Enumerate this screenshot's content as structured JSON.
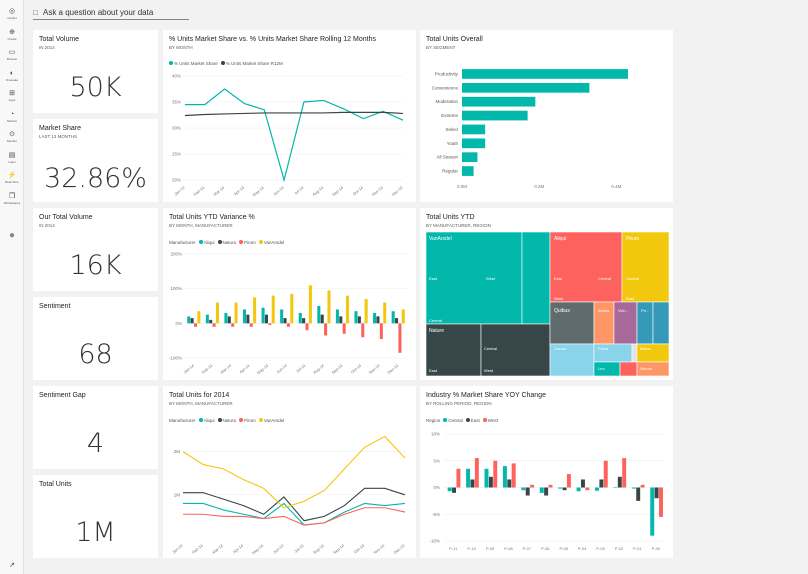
{
  "colors": {
    "teal": "#01b8aa",
    "dark": "#374649",
    "red": "#fd625e",
    "yellow": "#f2c80f",
    "gray": "#5f6b6d",
    "lightblue": "#8ad4eb",
    "orange": "#fe9666",
    "purple": "#a66999",
    "blue": "#3599b8",
    "lime": "#dfbfbf"
  },
  "nav": [
    {
      "label": "Copilot",
      "icon": "copilot-icon"
    },
    {
      "label": "Create",
      "icon": "plus-icon"
    },
    {
      "label": "Browse",
      "icon": "folder-icon"
    },
    {
      "label": "OneLake",
      "icon": "onelake-icon"
    },
    {
      "label": "Apps",
      "icon": "apps-icon"
    },
    {
      "label": "Metrics",
      "icon": "metrics-icon"
    },
    {
      "label": "Monitor",
      "icon": "monitor-icon"
    },
    {
      "label": "Learn",
      "icon": "book-icon"
    },
    {
      "label": "Real-Time",
      "icon": "realtime-icon"
    },
    {
      "label": "Workspaces",
      "icon": "workspaces-icon"
    }
  ],
  "qa": {
    "placeholder": "Ask a question about your data"
  },
  "cards": {
    "total_volume": {
      "title": "Total Volume",
      "subtitle": "IN 2014",
      "value": "50K"
    },
    "market_share": {
      "title": "Market Share",
      "subtitle": "LAST 13 MONTHS",
      "value": "32.86%"
    },
    "our_total_volume": {
      "title": "Our Total Volume",
      "subtitle": "IN 2014",
      "value": "16K"
    },
    "sentiment": {
      "title": "Sentiment",
      "subtitle": "",
      "value": "68"
    },
    "sentiment_gap": {
      "title": "Sentiment Gap",
      "subtitle": "",
      "value": "4"
    },
    "total_units": {
      "title": "Total Units",
      "subtitle": "",
      "value": "1M"
    }
  },
  "tiles": {
    "share_rolling": {
      "title": "% Units Market Share vs. % Units Market Share Rolling 12 Months",
      "subtitle": "BY MONTH",
      "legend": [
        "% Units Market Share",
        "% Units Market Share R12M"
      ]
    },
    "units_overall": {
      "title": "Total Units Overall",
      "subtitle": "BY SEGMENT"
    },
    "ytd_variance": {
      "title": "Total Units YTD Variance %",
      "subtitle": "BY MONTH, MANUFACTURER",
      "legend_label": "Manufacturer",
      "legend": [
        "Aliqui",
        "Natura",
        "Pirum",
        "VanArsdel"
      ]
    },
    "units_ytd": {
      "title": "Total Units YTD",
      "subtitle": "BY MANUFACTURER, REGION"
    },
    "units_2014": {
      "title": "Total Units for 2014",
      "subtitle": "BY MONTH, MANUFACTURER",
      "legend_label": "Manufacturer",
      "legend": [
        "Aliqui",
        "Natura",
        "Pirum",
        "VanArsdel"
      ]
    },
    "industry_yoy": {
      "title": "Industry % Market Share YOY Change",
      "subtitle": "BY ROLLING PERIOD, REGION",
      "legend_label": "Region",
      "legend": [
        "Central",
        "East",
        "West"
      ]
    }
  },
  "chart_data": [
    {
      "type": "line",
      "id": "share_rolling",
      "x": [
        "Jan-14",
        "Feb-14",
        "Mar-14",
        "Apr-14",
        "May-14",
        "Jun-14",
        "Jul-14",
        "Aug-14",
        "Sep-14",
        "Oct-14",
        "Nov-14",
        "Dec-14"
      ],
      "series": [
        {
          "name": "% Units Market Share",
          "values": [
            34.5,
            34.5,
            37.5,
            34.7,
            33.5,
            20,
            35,
            35.3,
            33.7,
            31.8,
            33.2,
            31.5
          ]
        },
        {
          "name": "% Units Market Share R12M",
          "values": [
            32.4,
            32.6,
            32.7,
            32.8,
            32.9,
            32.9,
            32.9,
            32.9,
            33,
            33,
            33,
            32.8
          ]
        }
      ],
      "yticks": [
        "20%",
        "25%",
        "30%",
        "35%",
        "40%"
      ],
      "ylim": [
        20,
        40
      ]
    },
    {
      "type": "bar",
      "id": "units_overall",
      "categories": [
        "Productivity",
        "Convenience",
        "Moderation",
        "Extreme",
        "Select",
        "Youth",
        "All Season",
        "Regular"
      ],
      "values": [
        0.43,
        0.33,
        0.19,
        0.17,
        0.06,
        0.06,
        0.04,
        0.03
      ],
      "xticks": [
        "0.0M",
        "0.2M",
        "0.4M"
      ],
      "xlim": [
        0,
        0.5
      ]
    },
    {
      "type": "bar",
      "id": "ytd_variance",
      "categories": [
        "Jan-14",
        "Feb-14",
        "Mar-14",
        "Apr-14",
        "May-14",
        "Jun-14",
        "Jul-14",
        "Aug-14",
        "Sep-14",
        "Oct-14",
        "Nov-14",
        "Dec-14"
      ],
      "series": [
        {
          "name": "Aliqui",
          "values": [
            20,
            25,
            30,
            40,
            45,
            40,
            30,
            50,
            40,
            35,
            30,
            35
          ]
        },
        {
          "name": "Natura",
          "values": [
            15,
            10,
            20,
            25,
            25,
            15,
            15,
            25,
            20,
            20,
            20,
            15
          ]
        },
        {
          "name": "Pirum",
          "values": [
            -10,
            -10,
            -10,
            -10,
            -5,
            -10,
            -20,
            -35,
            -30,
            -40,
            -45,
            -85
          ]
        },
        {
          "name": "VanArsdel",
          "values": [
            35,
            60,
            60,
            75,
            80,
            85,
            110,
            95,
            80,
            70,
            60,
            40
          ]
        }
      ],
      "yticks": [
        "-100%",
        "0%",
        "100%",
        "200%"
      ],
      "ylim": [
        -100,
        200
      ]
    },
    {
      "type": "treemap",
      "id": "units_ytd",
      "labels": [
        "VanArsdel",
        "East",
        "Central",
        "West",
        "Aliqui",
        "East",
        "West",
        "Central",
        "Pirum",
        "East",
        "Central",
        "Quibus",
        "Abbas",
        "Vict...",
        "Pri...",
        "Nature",
        "Central",
        "East",
        "West",
        "Currus",
        "Fama",
        "Barba",
        "Leo",
        "Salvus"
      ]
    },
    {
      "type": "line",
      "id": "units_2014",
      "x": [
        "Jan-14",
        "Feb-14",
        "Mar-14",
        "Apr-14",
        "May-14",
        "Jun-14",
        "Jul-14",
        "Aug-14",
        "Sep-14",
        "Oct-14",
        "Nov-14",
        "Dec-14"
      ],
      "series": [
        {
          "name": "Aliqui",
          "values": [
            0.8,
            0.8,
            0.65,
            0.55,
            0.45,
            0.8,
            0.3,
            0.35,
            0.6,
            0.8,
            0.75,
            0.8
          ]
        },
        {
          "name": "Natura",
          "values": [
            1.05,
            1.05,
            0.9,
            0.75,
            0.55,
            0.95,
            0.4,
            0.5,
            0.75,
            1.15,
            1.15,
            1.0
          ]
        },
        {
          "name": "Pirum",
          "values": [
            0.55,
            0.55,
            0.5,
            0.5,
            0.45,
            0.5,
            0.3,
            0.35,
            0.55,
            0.7,
            0.7,
            0.6
          ]
        },
        {
          "name": "VanArsdel",
          "values": [
            2.0,
            1.7,
            1.6,
            1.35,
            1.15,
            0.7,
            0.85,
            1.1,
            1.6,
            2.1,
            2.35,
            1.85
          ]
        }
      ],
      "yticks": [
        "1M",
        "2M"
      ],
      "ylim": [
        0,
        2.5
      ]
    },
    {
      "type": "bar",
      "id": "industry_yoy",
      "categories": [
        "P-11",
        "P-10",
        "P-09",
        "P-08",
        "P-07",
        "P-06",
        "P-05",
        "P-04",
        "P-03",
        "P-02",
        "P-01",
        "P-00"
      ],
      "series": [
        {
          "name": "Central",
          "values": [
            -0.7,
            3.5,
            3.5,
            4,
            -0.5,
            -1,
            -0.2,
            -0.7,
            -0.6,
            0.1,
            -0.2,
            -9
          ]
        },
        {
          "name": "East",
          "values": [
            -1,
            1.5,
            2,
            1.5,
            -1.5,
            -1.5,
            -0.5,
            1.5,
            1.5,
            2,
            -2.5,
            -2
          ]
        },
        {
          "name": "West",
          "values": [
            3.5,
            5.5,
            5,
            4.5,
            0.5,
            0.5,
            2.5,
            -0.5,
            5,
            5.5,
            0.5,
            -5.5
          ]
        }
      ],
      "yticks": [
        "-10%",
        "-5%",
        "0%",
        "5%",
        "10%"
      ],
      "ylim": [
        -10,
        10
      ]
    }
  ]
}
